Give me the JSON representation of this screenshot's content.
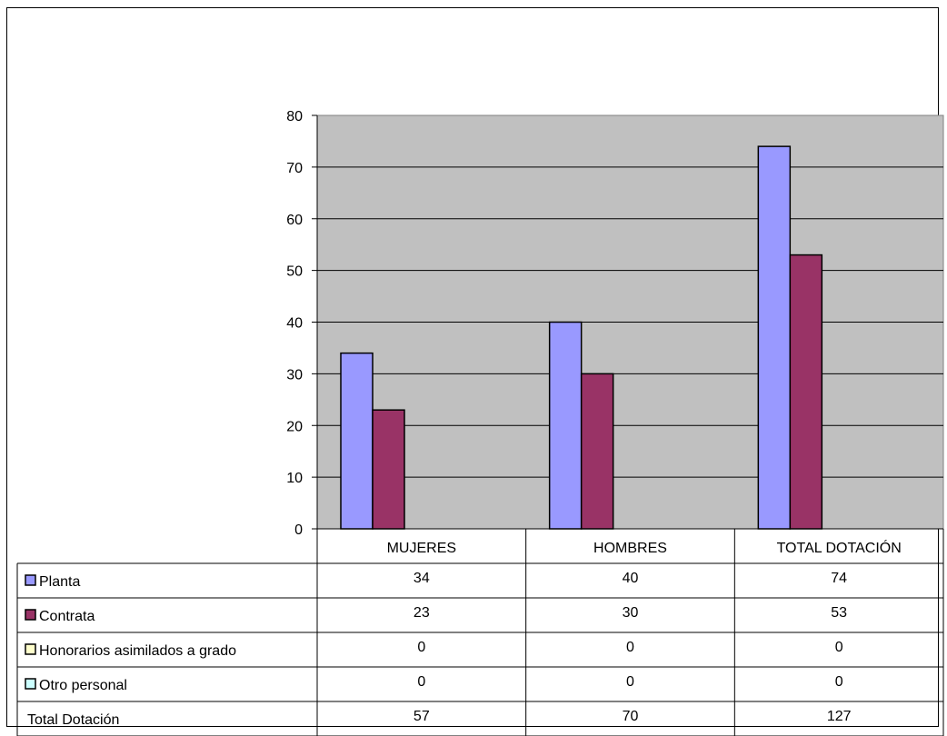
{
  "chart_data": {
    "type": "bar",
    "categories": [
      "MUJERES",
      "HOMBRES",
      "TOTAL DOTACIÓN"
    ],
    "ylim": [
      0,
      80
    ],
    "yticks": [
      0,
      10,
      20,
      30,
      40,
      50,
      60,
      70,
      80
    ],
    "grid": true,
    "plot_background": "#c0c0c0",
    "series": [
      {
        "name": "Planta",
        "values": [
          34,
          40,
          74
        ],
        "color": "#9999ff",
        "plotted": true
      },
      {
        "name": "Contrata",
        "values": [
          23,
          30,
          53
        ],
        "color": "#993366",
        "plotted": true
      },
      {
        "name": "Honorarios asimilados a grado",
        "values": [
          0,
          0,
          0
        ],
        "color": "#ffffcc",
        "plotted": false
      },
      {
        "name": "Otro personal",
        "values": [
          0,
          0,
          0
        ],
        "color": "#ccffff",
        "plotted": false
      }
    ],
    "total_row": {
      "name": "Total Dotación",
      "values": [
        57,
        70,
        127
      ]
    }
  }
}
